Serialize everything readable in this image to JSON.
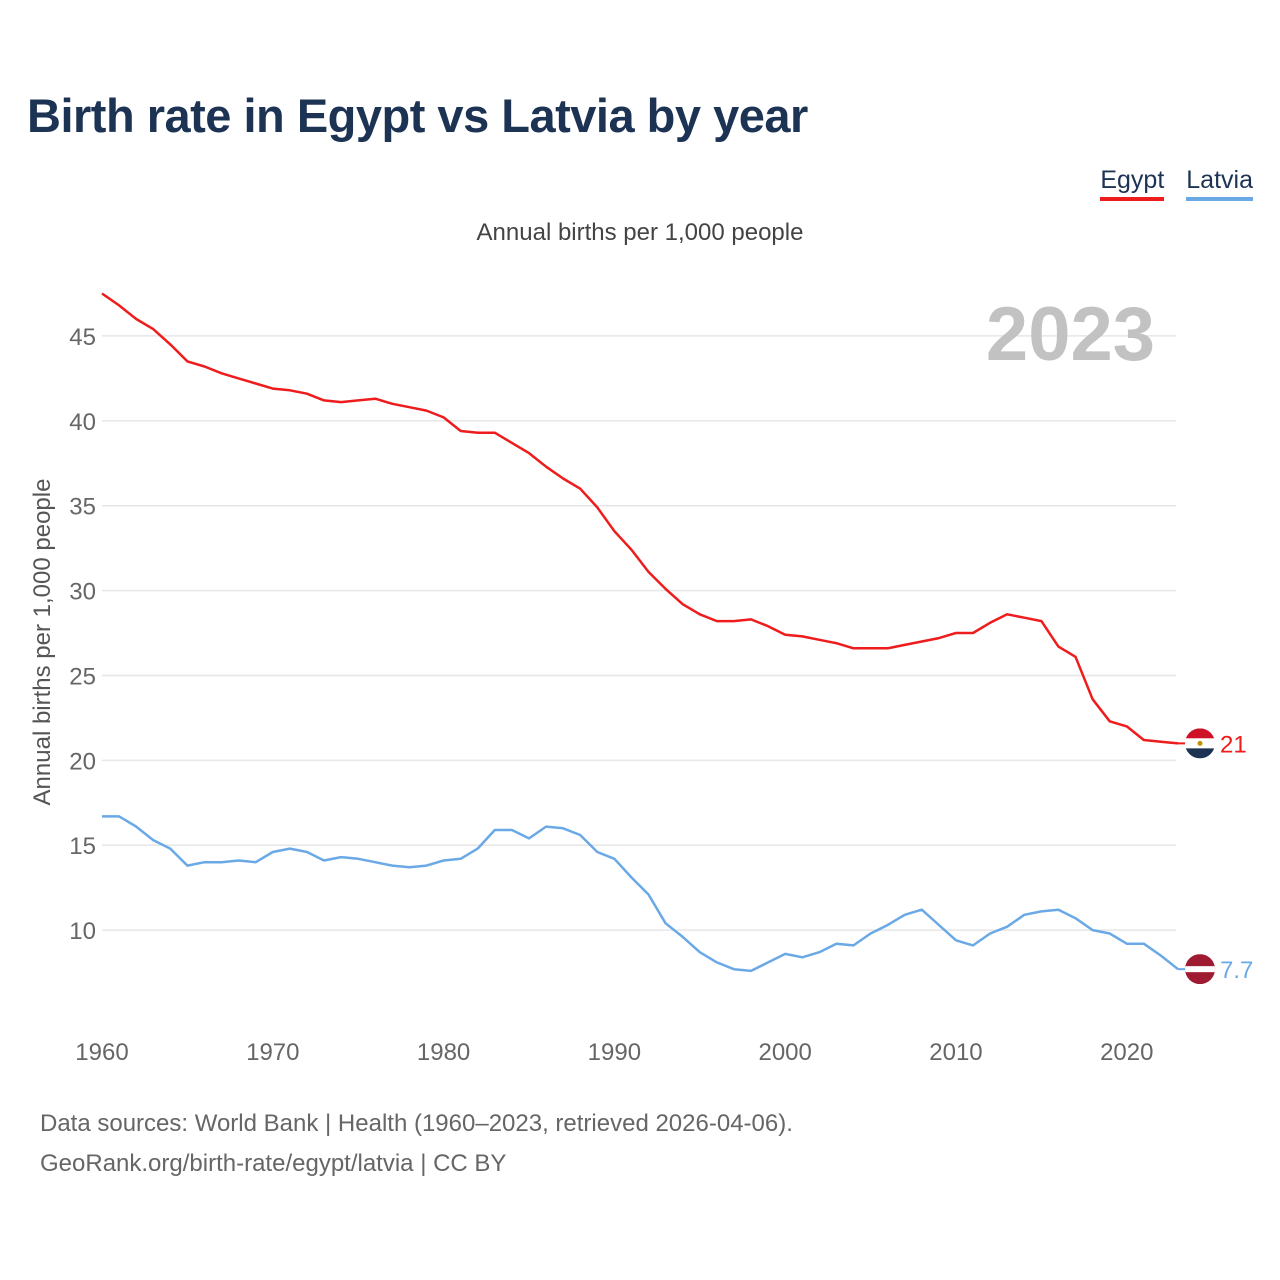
{
  "title": "Birth rate in Egypt vs Latvia by year",
  "legend": [
    {
      "label": "Egypt",
      "color": "#ee1c1c"
    },
    {
      "label": "Latvia",
      "color": "#6aa9e6"
    }
  ],
  "year_watermark": "2023",
  "footer": {
    "line1": "Data sources: World Bank | Health (1960–2023, retrieved 2026-04-06).",
    "line2": "GeoRank.org/birth-rate/egypt/latvia | CC BY"
  },
  "chart_data": {
    "type": "line",
    "title": "Annual births per 1,000 people",
    "xlabel": "",
    "ylabel": "Annual births per 1,000 people",
    "xlim": [
      1960,
      2023
    ],
    "ylim": [
      5,
      48
    ],
    "x_ticks": [
      1960,
      1970,
      1980,
      1990,
      2000,
      2010,
      2020
    ],
    "y_ticks": [
      10,
      15,
      20,
      25,
      30,
      35,
      40,
      45
    ],
    "grid": true,
    "legend_position": "top-right",
    "x": [
      1960,
      1961,
      1962,
      1963,
      1964,
      1965,
      1966,
      1967,
      1968,
      1969,
      1970,
      1971,
      1972,
      1973,
      1974,
      1975,
      1976,
      1977,
      1978,
      1979,
      1980,
      1981,
      1982,
      1983,
      1984,
      1985,
      1986,
      1987,
      1988,
      1989,
      1990,
      1991,
      1992,
      1993,
      1994,
      1995,
      1996,
      1997,
      1998,
      1999,
      2000,
      2001,
      2002,
      2003,
      2004,
      2005,
      2006,
      2007,
      2008,
      2009,
      2010,
      2011,
      2012,
      2013,
      2014,
      2015,
      2016,
      2017,
      2018,
      2019,
      2020,
      2021,
      2022,
      2023
    ],
    "series": [
      {
        "name": "Egypt",
        "color": "#ee1c1c",
        "end_label": "21",
        "values": [
          47.5,
          46.8,
          46.0,
          45.4,
          44.5,
          43.5,
          43.2,
          42.8,
          42.5,
          42.2,
          41.9,
          41.8,
          41.6,
          41.2,
          41.1,
          41.2,
          41.3,
          41.0,
          40.8,
          40.6,
          40.2,
          39.4,
          39.3,
          39.3,
          38.7,
          38.1,
          37.3,
          36.6,
          36.0,
          34.9,
          33.5,
          32.4,
          31.1,
          30.1,
          29.2,
          28.6,
          28.2,
          28.2,
          28.3,
          27.9,
          27.4,
          27.3,
          27.1,
          26.9,
          26.6,
          26.6,
          26.6,
          26.8,
          27.0,
          27.2,
          27.5,
          27.5,
          28.1,
          28.6,
          28.4,
          28.2,
          26.7,
          26.1,
          23.6,
          22.3,
          22.0,
          21.2,
          21.1,
          21.0
        ]
      },
      {
        "name": "Latvia",
        "color": "#6aa9e6",
        "end_label": "7.7",
        "values": [
          16.7,
          16.7,
          16.1,
          15.3,
          14.8,
          13.8,
          14.0,
          14.0,
          14.1,
          14.0,
          14.6,
          14.8,
          14.6,
          14.1,
          14.3,
          14.2,
          14.0,
          13.8,
          13.7,
          13.8,
          14.1,
          14.2,
          14.8,
          15.9,
          15.9,
          15.4,
          16.1,
          16.0,
          15.6,
          14.6,
          14.2,
          13.1,
          12.1,
          10.4,
          9.6,
          8.7,
          8.1,
          7.7,
          7.6,
          8.1,
          8.6,
          8.4,
          8.7,
          9.2,
          9.1,
          9.8,
          10.3,
          10.9,
          11.2,
          10.3,
          9.4,
          9.1,
          9.8,
          10.2,
          10.9,
          11.1,
          11.2,
          10.7,
          10.0,
          9.8,
          9.2,
          9.2,
          8.5,
          7.7
        ]
      }
    ]
  }
}
